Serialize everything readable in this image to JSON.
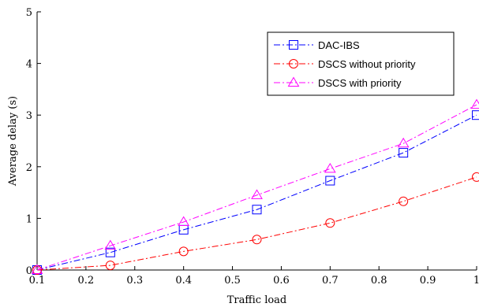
{
  "chart_data": {
    "type": "line",
    "title": "",
    "xlabel": "Traffic load",
    "ylabel": "Average delay (s)",
    "xlim": [
      0.1,
      1.0
    ],
    "ylim": [
      0,
      5
    ],
    "x_ticks": [
      "0.1",
      "0.2",
      "0.3",
      "0.4",
      "0.5",
      "0.6",
      "0.7",
      "0.8",
      "0.9",
      "1"
    ],
    "y_ticks": [
      "0",
      "1",
      "2",
      "3",
      "4",
      "5"
    ],
    "grid": false,
    "legend_position": "top-right",
    "x": [
      0.1,
      0.25,
      0.4,
      0.55,
      0.7,
      0.85,
      1.0
    ],
    "series": [
      {
        "name": "DAC-IBS",
        "color": "#0000ff",
        "marker": "square",
        "line_style": "dash-dot",
        "values": [
          0.0,
          0.34,
          0.78,
          1.17,
          1.73,
          2.27,
          3.0
        ]
      },
      {
        "name": "DSCS without priority",
        "color": "#ff0000",
        "marker": "circle",
        "line_style": "dash-dot",
        "values": [
          0.0,
          0.09,
          0.36,
          0.59,
          0.91,
          1.33,
          1.8
        ]
      },
      {
        "name": "DSCS with priority",
        "color": "#ff00ff",
        "marker": "triangle",
        "line_style": "dash-dot",
        "values": [
          0.0,
          0.47,
          0.93,
          1.45,
          1.96,
          2.45,
          3.2
        ]
      }
    ]
  }
}
